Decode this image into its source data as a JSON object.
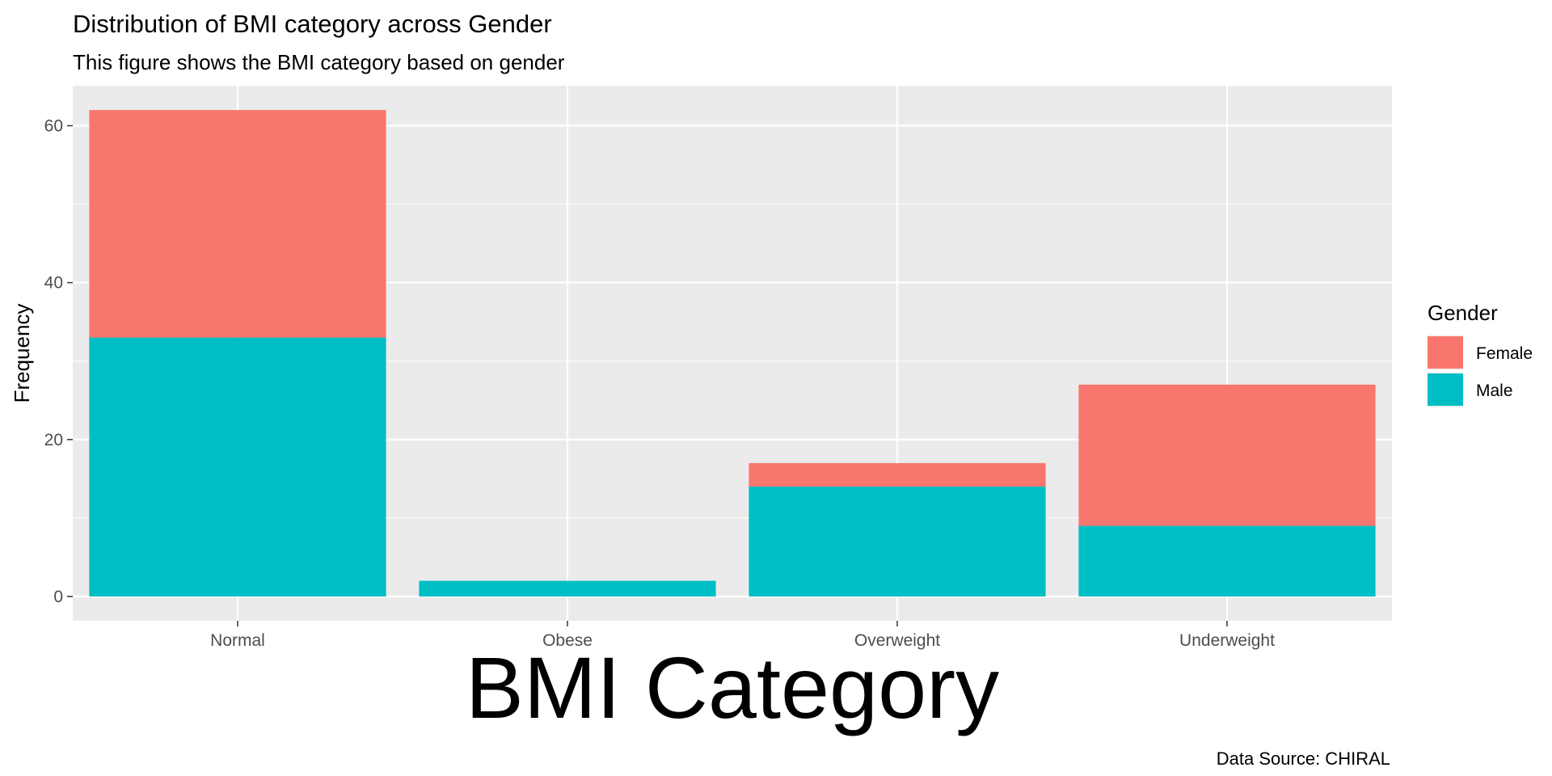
{
  "chart_data": {
    "type": "bar",
    "stacked": true,
    "title": "Distribution of BMI category across Gender",
    "subtitle": "This figure shows the BMI category based on gender",
    "xlabel": "BMI Category",
    "ylabel": "Frequency",
    "caption": "Data Source: CHIRAL",
    "categories": [
      "Normal",
      "Obese",
      "Overweight",
      "Underweight"
    ],
    "series": [
      {
        "name": "Male",
        "color": "#00BFC4",
        "values": [
          33,
          2,
          14,
          9
        ]
      },
      {
        "name": "Female",
        "color": "#F8766D",
        "values": [
          29,
          0,
          3,
          18
        ]
      }
    ],
    "ylim": [
      -3.1,
      65.1
    ],
    "yticks": [
      0,
      20,
      40,
      60
    ],
    "grid": true,
    "legend": {
      "title": "Gender",
      "position": "right",
      "order": [
        "Female",
        "Male"
      ]
    },
    "panel_color": "#EBEBEB"
  }
}
